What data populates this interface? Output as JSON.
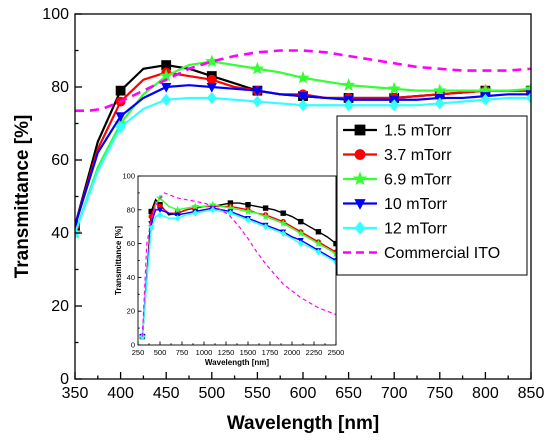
{
  "chart_data": [
    {
      "type": "line",
      "xlabel": "Wavelength [nm]",
      "ylabel": "Transmittance [%]",
      "xlim": [
        350,
        850
      ],
      "ylim": [
        0,
        100
      ],
      "xticks": [
        350,
        400,
        450,
        500,
        550,
        600,
        650,
        700,
        750,
        800,
        850
      ],
      "yticks": [
        0,
        20,
        40,
        60,
        80,
        100
      ],
      "legend_position": "right",
      "series": [
        {
          "name": "1.5 mTorr",
          "color": "#000000",
          "marker": "square",
          "dash": "solid",
          "x": [
            350,
            375,
            400,
            425,
            450,
            475,
            500,
            525,
            550,
            575,
            600,
            625,
            650,
            675,
            700,
            725,
            750,
            775,
            800,
            825,
            850
          ],
          "y": [
            42,
            65,
            79,
            85,
            86,
            85,
            83,
            81,
            79,
            78,
            77.5,
            77,
            77,
            77,
            77,
            77.5,
            78,
            78.5,
            79,
            79,
            79
          ]
        },
        {
          "name": "3.7 mTorr",
          "color": "#ff0000",
          "marker": "circle",
          "dash": "solid",
          "x": [
            350,
            375,
            400,
            425,
            450,
            475,
            500,
            525,
            550,
            575,
            600,
            625,
            650,
            675,
            700,
            725,
            750,
            775,
            800,
            825,
            850
          ],
          "y": [
            42,
            63,
            76,
            82,
            84,
            83,
            82,
            80,
            79,
            78,
            78,
            77,
            77,
            77,
            77,
            77.5,
            78,
            78.5,
            79,
            79,
            79
          ]
        },
        {
          "name": "6.9 mTorr",
          "color": "#33ff33",
          "marker": "star",
          "dash": "solid",
          "x": [
            350,
            375,
            400,
            425,
            450,
            475,
            500,
            525,
            550,
            575,
            600,
            625,
            650,
            675,
            700,
            725,
            750,
            775,
            800,
            825,
            850
          ],
          "y": [
            40,
            58,
            70,
            78,
            83,
            86,
            87,
            86,
            85,
            84,
            82.5,
            81.5,
            80.5,
            80,
            79.5,
            79,
            79,
            79,
            79,
            79,
            79.5
          ]
        },
        {
          "name": "10 mTorr",
          "color": "#0000ff",
          "marker": "triangle-down",
          "dash": "solid",
          "x": [
            350,
            375,
            400,
            425,
            450,
            475,
            500,
            525,
            550,
            575,
            600,
            625,
            650,
            675,
            700,
            725,
            750,
            775,
            800,
            825,
            850
          ],
          "y": [
            42,
            62,
            72,
            77,
            80,
            80.5,
            80,
            79.5,
            79,
            78,
            77.5,
            77,
            76.5,
            76.5,
            76.5,
            76.5,
            77,
            77,
            77.5,
            78,
            78
          ]
        },
        {
          "name": "12 mTorr",
          "color": "#33ffff",
          "marker": "diamond",
          "dash": "solid",
          "x": [
            350,
            375,
            400,
            425,
            450,
            475,
            500,
            525,
            550,
            575,
            600,
            625,
            650,
            675,
            700,
            725,
            750,
            775,
            800,
            825,
            850
          ],
          "y": [
            40,
            57,
            69,
            74,
            76.5,
            77,
            77,
            76.5,
            76,
            75.5,
            75,
            75,
            75,
            75,
            75,
            75,
            75.5,
            76,
            76.5,
            77,
            77
          ]
        },
        {
          "name": "Commercial ITO",
          "color": "#ff00ff",
          "marker": "none",
          "dash": "dashed",
          "x": [
            350,
            365,
            380,
            400,
            425,
            450,
            475,
            500,
            525,
            550,
            575,
            600,
            625,
            650,
            675,
            700,
            725,
            750,
            775,
            800,
            825,
            850
          ],
          "y": [
            73.5,
            73.5,
            74,
            76,
            79,
            82,
            85,
            87,
            88.5,
            89.5,
            90,
            90,
            89.5,
            88.5,
            87.5,
            86.5,
            85.5,
            85,
            84.5,
            84.5,
            84.5,
            85
          ]
        }
      ]
    },
    {
      "type": "line",
      "xlabel": "Wavelength [nm]",
      "ylabel": "Transmittance [%]",
      "xlim": [
        250,
        2500
      ],
      "ylim": [
        0,
        100
      ],
      "xticks": [
        250,
        500,
        750,
        1000,
        1250,
        1500,
        1750,
        2000,
        2250,
        2500
      ],
      "yticks": [
        0,
        20,
        40,
        60,
        80,
        100
      ],
      "series": [
        {
          "name": "1.5 mTorr",
          "color": "#000000",
          "marker": "square",
          "x": [
            300,
            350,
            400,
            450,
            500,
            600,
            700,
            800,
            900,
            1000,
            1100,
            1200,
            1300,
            1400,
            1500,
            1600,
            1700,
            1800,
            1900,
            2000,
            2100,
            2200,
            2300,
            2400,
            2500
          ],
          "y": [
            5,
            40,
            79,
            86,
            83,
            77,
            78,
            80,
            81,
            82,
            82,
            83,
            84,
            84,
            83,
            82,
            81,
            80,
            78,
            76,
            73,
            70,
            67,
            64,
            60
          ]
        },
        {
          "name": "3.7 mTorr",
          "color": "#ff0000",
          "marker": "circle",
          "x": [
            300,
            350,
            400,
            450,
            500,
            600,
            700,
            800,
            900,
            1000,
            1100,
            1200,
            1300,
            1400,
            1500,
            1600,
            1700,
            1800,
            1900,
            2000,
            2100,
            2200,
            2300,
            2400,
            2500
          ],
          "y": [
            5,
            40,
            76,
            84,
            82,
            78,
            78,
            80,
            81,
            82,
            82,
            82,
            82,
            81,
            80,
            78,
            77,
            75,
            73,
            70,
            67,
            64,
            61,
            58,
            55
          ]
        },
        {
          "name": "6.9 mTorr",
          "color": "#33ff33",
          "marker": "star",
          "x": [
            300,
            350,
            400,
            450,
            500,
            600,
            700,
            800,
            900,
            1000,
            1100,
            1200,
            1300,
            1400,
            1500,
            1600,
            1700,
            1800,
            1900,
            2000,
            2100,
            2200,
            2300,
            2400,
            2500
          ],
          "y": [
            5,
            38,
            70,
            83,
            87,
            82,
            80,
            81,
            82,
            82,
            83,
            82,
            81,
            80,
            79,
            78,
            76,
            74,
            72,
            69,
            66,
            63,
            60,
            57,
            54
          ]
        },
        {
          "name": "10 mTorr",
          "color": "#0000ff",
          "marker": "triangle-down",
          "x": [
            300,
            350,
            400,
            450,
            500,
            600,
            700,
            800,
            900,
            1000,
            1100,
            1200,
            1300,
            1400,
            1500,
            1600,
            1700,
            1800,
            1900,
            2000,
            2100,
            2200,
            2300,
            2400,
            2500
          ],
          "y": [
            5,
            40,
            72,
            80,
            80,
            78,
            77,
            78,
            79,
            80,
            81,
            80,
            79,
            77,
            75,
            73,
            71,
            69,
            67,
            64,
            62,
            59,
            56,
            53,
            50
          ]
        },
        {
          "name": "12 mTorr",
          "color": "#33ffff",
          "marker": "diamond",
          "x": [
            300,
            350,
            400,
            450,
            500,
            600,
            700,
            800,
            900,
            1000,
            1100,
            1200,
            1300,
            1400,
            1500,
            1600,
            1700,
            1800,
            1900,
            2000,
            2100,
            2200,
            2300,
            2400,
            2500
          ],
          "y": [
            5,
            38,
            69,
            76,
            77,
            75,
            75,
            77,
            78,
            79,
            80,
            79,
            78,
            76,
            74,
            72,
            70,
            68,
            66,
            63,
            60,
            58,
            55,
            52,
            49
          ]
        },
        {
          "name": "Commercial ITO",
          "color": "#ff00ff",
          "marker": "none",
          "dash": "dashed",
          "x": [
            300,
            350,
            400,
            450,
            500,
            550,
            600,
            700,
            800,
            900,
            1000,
            1100,
            1200,
            1300,
            1400,
            1500,
            1600,
            1700,
            1800,
            1900,
            2000,
            2100,
            2200,
            2300,
            2400,
            2500
          ],
          "y": [
            5,
            60,
            74,
            82,
            87,
            90,
            89,
            87,
            86,
            85,
            84,
            82,
            80,
            76,
            70,
            63,
            55,
            48,
            42,
            36,
            32,
            28,
            25,
            22,
            20,
            18
          ]
        }
      ]
    }
  ]
}
